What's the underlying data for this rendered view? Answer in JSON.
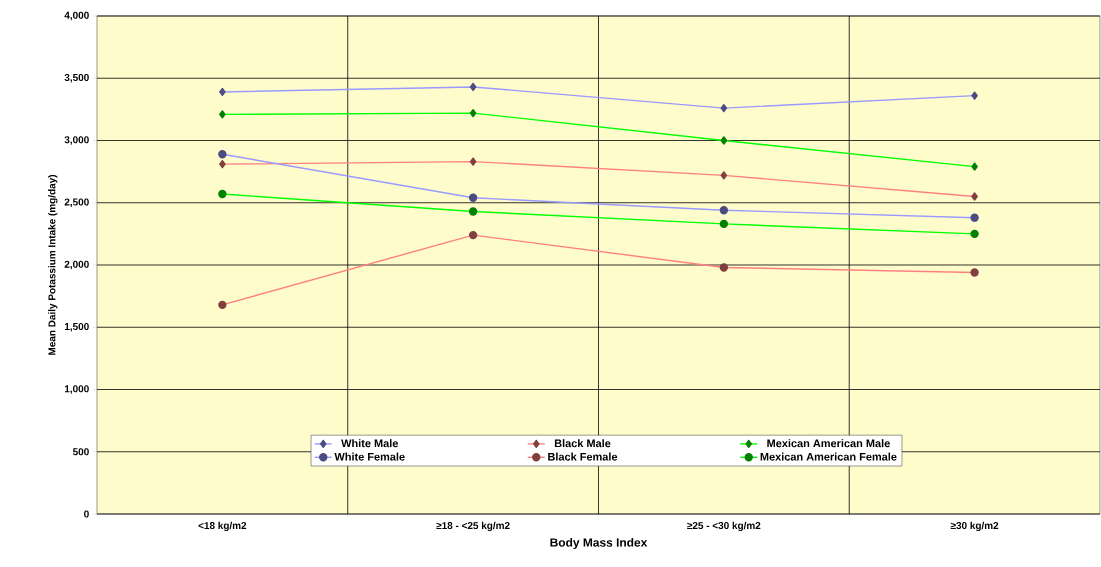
{
  "chart_data": {
    "type": "line",
    "xlabel": "Body Mass Index",
    "ylabel": "Mean Daily Potassium Intake (mg/day)",
    "categories": [
      "<18 kg/m2",
      "≥18 - <25 kg/m2",
      "≥25 - <30 kg/m2",
      "≥30 kg/m2"
    ],
    "series": [
      {
        "name": "White Male",
        "color": "#9999ff",
        "marker": "diamond",
        "values": [
          3390,
          3430,
          3260,
          3360
        ]
      },
      {
        "name": "Black Male",
        "color": "#ff8080",
        "marker": "diamond",
        "values": [
          2810,
          2830,
          2720,
          2550
        ]
      },
      {
        "name": "Mexican American Male",
        "color": "#00ff00",
        "marker": "diamond",
        "values": [
          3210,
          3220,
          3000,
          2790
        ]
      },
      {
        "name": "White Female",
        "color": "#9999ff",
        "marker": "circle",
        "values": [
          2890,
          2540,
          2440,
          2380
        ]
      },
      {
        "name": "Black Female",
        "color": "#ff8080",
        "marker": "circle",
        "values": [
          1680,
          2240,
          1980,
          1940
        ]
      },
      {
        "name": "Mexican American Female",
        "color": "#00ff00",
        "marker": "circle",
        "values": [
          2570,
          2430,
          2330,
          2250
        ]
      }
    ],
    "ylim": [
      0,
      4000
    ],
    "yticks": [
      0,
      500,
      {
        "value": 1000,
        "label": "1,000"
      },
      {
        "value": 1500,
        "label": "1,500"
      },
      {
        "value": 2000,
        "label": "2,000"
      },
      {
        "value": 2500,
        "label": "2,500"
      },
      {
        "value": 3000,
        "label": "3,000"
      },
      {
        "value": 3500,
        "label": "3,500"
      },
      {
        "value": 4000,
        "label": "4,000"
      }
    ],
    "grid": true,
    "legend": "bottom",
    "line_style": "solid"
  }
}
